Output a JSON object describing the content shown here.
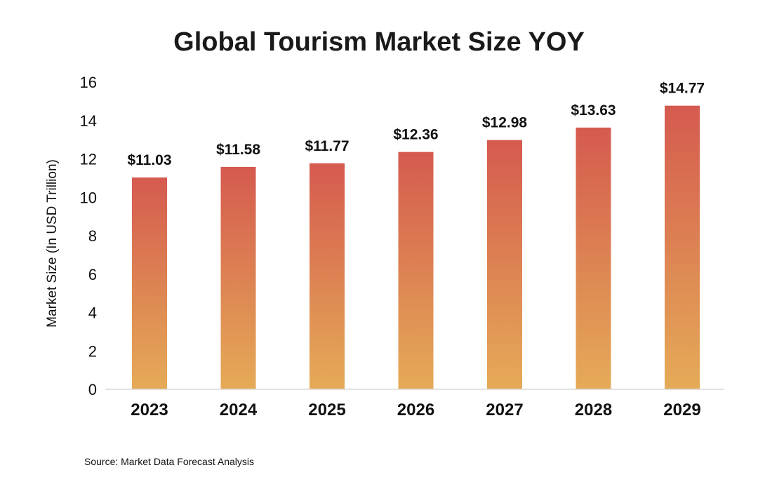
{
  "chart_data": {
    "type": "bar",
    "title": "Global Tourism Market Size YOY",
    "xlabel": "",
    "ylabel": "Market Size (In USD Trillion)",
    "categories": [
      "2023",
      "2024",
      "2025",
      "2026",
      "2027",
      "2028",
      "2029"
    ],
    "values": [
      11.03,
      11.58,
      11.77,
      12.36,
      12.98,
      13.63,
      14.77
    ],
    "value_labels": [
      "$11.03",
      "$11.58",
      "$11.77",
      "$12.36",
      "$12.98",
      "$13.63",
      "$14.77"
    ],
    "ylim": [
      0,
      16
    ],
    "yticks": [
      0,
      2,
      4,
      6,
      8,
      10,
      12,
      14,
      16
    ],
    "ytick_labels": [
      "0",
      "2",
      "4",
      "6",
      "8",
      "10",
      "12",
      "14",
      "16"
    ],
    "grid": false,
    "legend": "none",
    "colors": {
      "bar_top": "#D55A4F",
      "bar_bottom": "#E5AB57"
    }
  },
  "footer": {
    "source": "Source: Market Data Forecast Analysis"
  }
}
